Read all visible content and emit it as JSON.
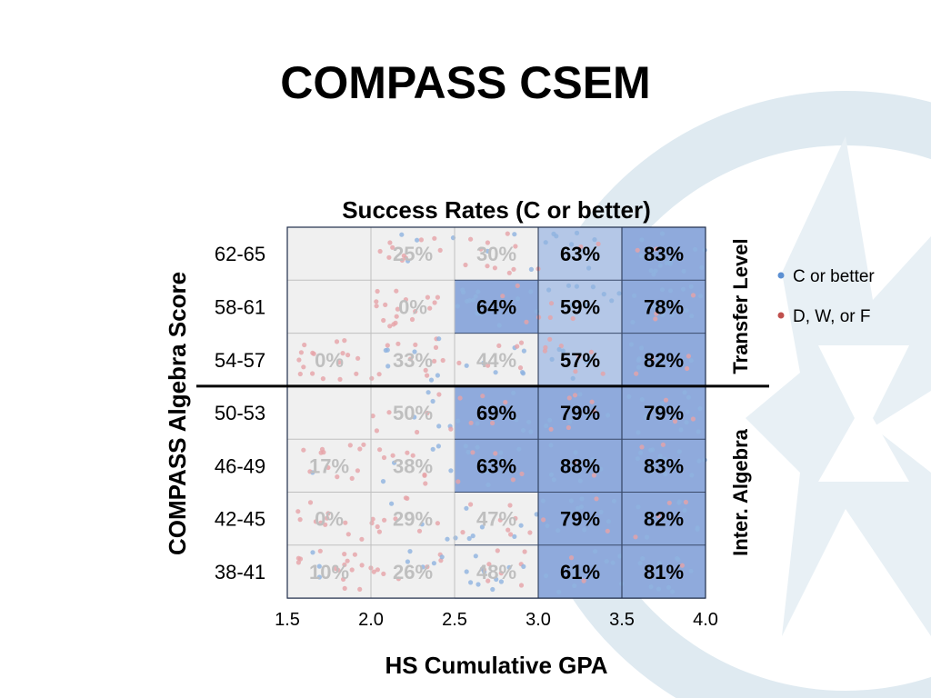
{
  "slide": {
    "title": "COMPASS CSEM"
  },
  "chart_data": {
    "type": "heatmap",
    "title": "Success Rates (C or better)",
    "xlabel": "HS Cumulative GPA",
    "ylabel": "COMPASS Algebra Score",
    "x_ticks": [
      "1.5",
      "2.0",
      "2.5",
      "3.0",
      "3.5",
      "4.0"
    ],
    "xlim": [
      1.5,
      4.0
    ],
    "rows": [
      "62-65",
      "58-61",
      "54-57",
      "50-53",
      "46-49",
      "42-45",
      "38-41"
    ],
    "columns": [
      "1.5-2.0",
      "2.0-2.5",
      "2.5-3.0",
      "3.0-3.5",
      "3.5-4.0"
    ],
    "cells": [
      [
        "",
        "25%",
        "30%",
        "63%",
        "83%"
      ],
      [
        "",
        "0%",
        "64%",
        "59%",
        "78%"
      ],
      [
        "0%",
        "33%",
        "44%",
        "57%",
        "82%"
      ],
      [
        "",
        "50%",
        "69%",
        "79%",
        "79%"
      ],
      [
        "17%",
        "38%",
        "63%",
        "88%",
        "83%"
      ],
      [
        "0%",
        "29%",
        "47%",
        "79%",
        "82%"
      ],
      [
        "10%",
        "26%",
        "48%",
        "61%",
        "81%"
      ]
    ],
    "right_labels": [
      {
        "text": "Transfer Level",
        "rows": [
          "62-65",
          "58-61",
          "54-57"
        ]
      },
      {
        "text": "Inter. Algebra",
        "rows": [
          "50-53",
          "46-49",
          "42-45",
          "38-41"
        ]
      }
    ],
    "legend": {
      "placement": "right",
      "items": [
        {
          "label": "C or better",
          "color": "#5b8fd2"
        },
        {
          "label": "D, W, or F",
          "color": "#c0504d"
        }
      ]
    },
    "colors": {
      "low_cell": "#f0f0f0",
      "high_cell": "#8faadc",
      "low_text": "#bfbfbf",
      "high_text": "#000000",
      "dot_pass": "#8eb3e0",
      "dot_fail": "#e6a3a8",
      "logo": "#dfeaf1"
    }
  }
}
